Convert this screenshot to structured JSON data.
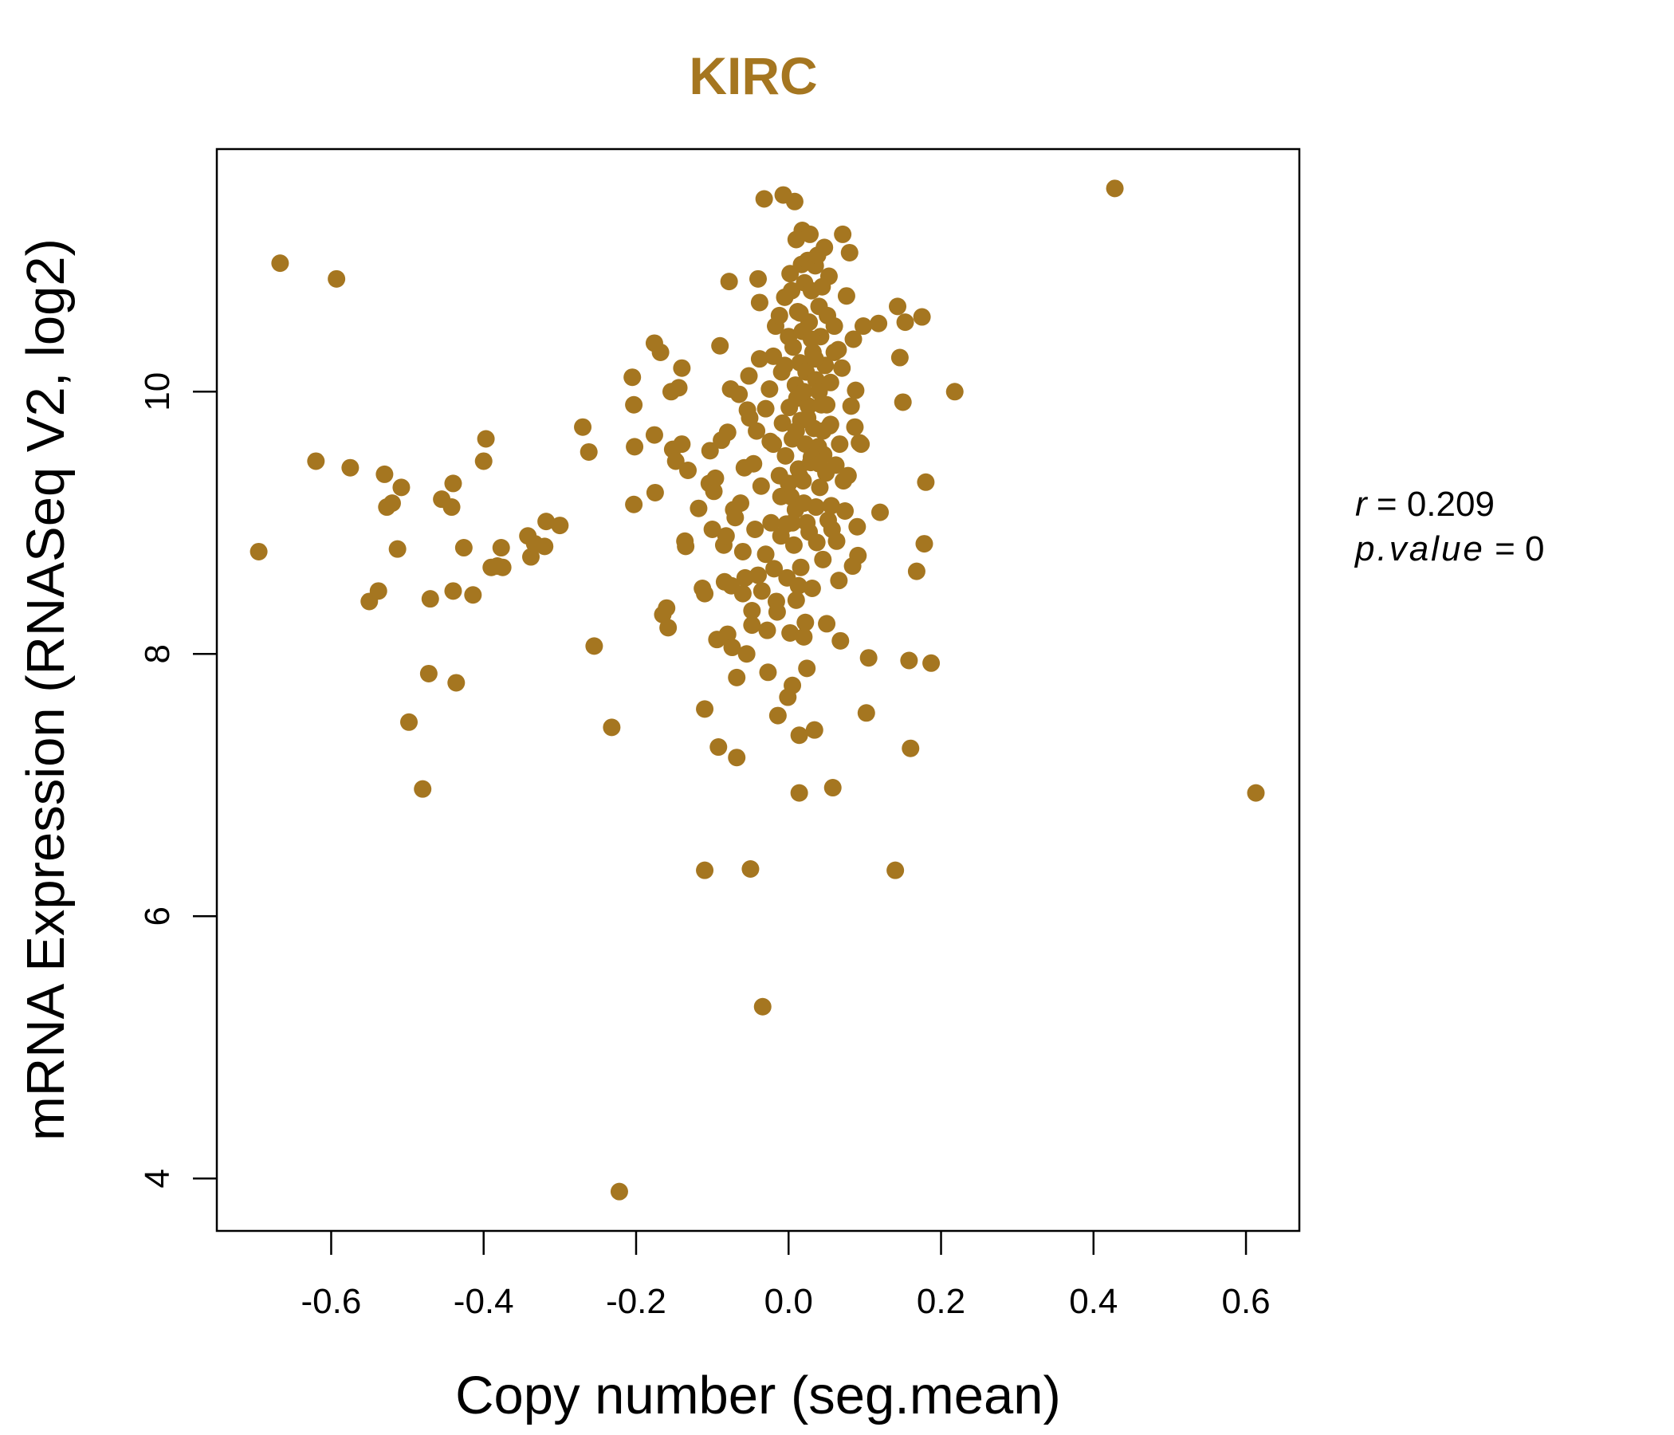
{
  "chart_data": {
    "type": "scatter",
    "title": "KIRC",
    "xlabel": "Copy number (seg.mean)",
    "ylabel": "mRNA Expression (RNASeq V2, log2)",
    "xlim": [
      -0.75,
      0.67
    ],
    "ylim": [
      3.6,
      11.85
    ],
    "xticks": [
      -0.6,
      -0.4,
      -0.2,
      0.0,
      0.2,
      0.4,
      0.6
    ],
    "xtick_labels": [
      "-0.6",
      "-0.4",
      "-0.2",
      "0.0",
      "0.2",
      "0.4",
      "0.6"
    ],
    "yticks": [
      4,
      6,
      8,
      10
    ],
    "ytick_labels": [
      "4",
      "6",
      "8",
      "10"
    ],
    "grid": false,
    "point_color": "#A57620",
    "title_color": "#A57620",
    "annotation": {
      "r_symbol": "r",
      "r_value": "0.209",
      "p_symbol": "p.value",
      "p_value": "0"
    },
    "points": [
      [
        -0.695,
        8.78
      ],
      [
        -0.667,
        10.98
      ],
      [
        -0.593,
        10.86
      ],
      [
        -0.62,
        9.47
      ],
      [
        -0.575,
        9.42
      ],
      [
        -0.55,
        8.4
      ],
      [
        -0.538,
        8.48
      ],
      [
        -0.53,
        9.37
      ],
      [
        -0.527,
        9.12
      ],
      [
        -0.52,
        9.15
      ],
      [
        -0.513,
        8.8
      ],
      [
        -0.508,
        9.27
      ],
      [
        -0.498,
        7.48
      ],
      [
        -0.48,
        6.97
      ],
      [
        -0.472,
        7.85
      ],
      [
        -0.47,
        8.42
      ],
      [
        -0.455,
        9.18
      ],
      [
        -0.442,
        9.12
      ],
      [
        -0.44,
        9.3
      ],
      [
        -0.44,
        8.48
      ],
      [
        -0.436,
        7.78
      ],
      [
        -0.426,
        8.81
      ],
      [
        -0.414,
        8.45
      ],
      [
        -0.4,
        9.47
      ],
      [
        -0.397,
        9.64
      ],
      [
        -0.39,
        8.66
      ],
      [
        -0.382,
        8.67
      ],
      [
        -0.377,
        8.81
      ],
      [
        -0.375,
        8.66
      ],
      [
        -0.342,
        8.9
      ],
      [
        -0.338,
        8.74
      ],
      [
        -0.333,
        8.84
      ],
      [
        -0.32,
        8.82
      ],
      [
        -0.318,
        9.01
      ],
      [
        -0.3,
        8.98
      ],
      [
        -0.27,
        9.73
      ],
      [
        -0.262,
        9.54
      ],
      [
        -0.255,
        8.06
      ],
      [
        -0.232,
        7.44
      ],
      [
        -0.222,
        3.9
      ],
      [
        -0.205,
        10.11
      ],
      [
        -0.203,
        9.9
      ],
      [
        -0.202,
        9.58
      ],
      [
        -0.203,
        9.14
      ],
      [
        -0.176,
        10.37
      ],
      [
        -0.176,
        9.67
      ],
      [
        -0.175,
        9.23
      ],
      [
        -0.168,
        10.3
      ],
      [
        -0.165,
        8.3
      ],
      [
        -0.16,
        8.35
      ],
      [
        -0.158,
        8.2
      ],
      [
        -0.154,
        10.0
      ],
      [
        -0.152,
        9.56
      ],
      [
        -0.148,
        9.47
      ],
      [
        -0.144,
        10.03
      ],
      [
        -0.14,
        10.18
      ],
      [
        -0.14,
        9.6
      ],
      [
        -0.136,
        8.86
      ],
      [
        -0.135,
        8.82
      ],
      [
        -0.132,
        9.4
      ],
      [
        -0.118,
        9.11
      ],
      [
        -0.113,
        8.5
      ],
      [
        -0.11,
        8.46
      ],
      [
        -0.11,
        7.58
      ],
      [
        -0.11,
        6.35
      ],
      [
        -0.104,
        9.3
      ],
      [
        -0.103,
        9.55
      ],
      [
        -0.1,
        8.95
      ],
      [
        -0.098,
        9.24
      ],
      [
        -0.096,
        9.34
      ],
      [
        -0.094,
        8.11
      ],
      [
        -0.092,
        7.29
      ],
      [
        -0.09,
        10.35
      ],
      [
        -0.088,
        9.63
      ],
      [
        -0.085,
        8.83
      ],
      [
        -0.084,
        8.55
      ],
      [
        -0.082,
        8.9
      ],
      [
        -0.08,
        9.69
      ],
      [
        -0.08,
        8.15
      ],
      [
        -0.078,
        10.84
      ],
      [
        -0.076,
        10.02
      ],
      [
        -0.075,
        8.52
      ],
      [
        -0.074,
        8.05
      ],
      [
        -0.072,
        9.1
      ],
      [
        -0.07,
        9.04
      ],
      [
        -0.068,
        7.82
      ],
      [
        -0.068,
        7.21
      ],
      [
        -0.065,
        9.98
      ],
      [
        -0.063,
        9.15
      ],
      [
        -0.06,
        8.78
      ],
      [
        -0.06,
        8.46
      ],
      [
        -0.058,
        9.42
      ],
      [
        -0.057,
        8.58
      ],
      [
        -0.055,
        8.0
      ],
      [
        -0.054,
        9.86
      ],
      [
        -0.052,
        10.12
      ],
      [
        -0.051,
        9.8
      ],
      [
        -0.05,
        6.36
      ],
      [
        -0.048,
        8.22
      ],
      [
        -0.048,
        8.33
      ],
      [
        -0.046,
        9.45
      ],
      [
        -0.044,
        8.95
      ],
      [
        -0.042,
        9.7
      ],
      [
        -0.04,
        10.86
      ],
      [
        -0.04,
        8.6
      ],
      [
        -0.038,
        10.68
      ],
      [
        -0.038,
        10.25
      ],
      [
        -0.036,
        9.28
      ],
      [
        -0.035,
        8.48
      ],
      [
        -0.034,
        5.31
      ],
      [
        -0.032,
        11.47
      ],
      [
        -0.03,
        9.87
      ],
      [
        -0.03,
        8.76
      ],
      [
        -0.028,
        8.18
      ],
      [
        -0.027,
        7.86
      ],
      [
        -0.025,
        10.02
      ],
      [
        -0.024,
        9.62
      ],
      [
        -0.023,
        9.0
      ],
      [
        -0.02,
        10.27
      ],
      [
        -0.019,
        8.65
      ],
      [
        -0.017,
        10.5
      ],
      [
        -0.016,
        8.4
      ],
      [
        -0.015,
        8.32
      ],
      [
        -0.014,
        7.53
      ],
      [
        -0.012,
        10.58
      ],
      [
        -0.012,
        9.36
      ],
      [
        -0.01,
        8.9
      ],
      [
        -0.009,
        10.15
      ],
      [
        -0.008,
        9.76
      ],
      [
        -0.007,
        11.5
      ],
      [
        -0.005,
        10.72
      ],
      [
        -0.004,
        9.51
      ],
      [
        -0.003,
        8.99
      ],
      [
        -0.002,
        8.58
      ],
      [
        -0.001,
        7.67
      ],
      [
        0.0,
        10.42
      ],
      [
        0.001,
        9.88
      ],
      [
        0.002,
        8.16
      ],
      [
        0.002,
        10.9
      ],
      [
        0.003,
        9.2
      ],
      [
        0.004,
        10.77
      ],
      [
        0.005,
        9.64
      ],
      [
        0.005,
        7.76
      ],
      [
        0.006,
        10.34
      ],
      [
        0.007,
        8.83
      ],
      [
        0.008,
        11.45
      ],
      [
        0.009,
        9.1
      ],
      [
        0.009,
        10.05
      ],
      [
        0.01,
        11.16
      ],
      [
        0.01,
        8.41
      ],
      [
        0.011,
        9.95
      ],
      [
        0.012,
        10.61
      ],
      [
        0.013,
        8.52
      ],
      [
        0.013,
        9.41
      ],
      [
        0.014,
        7.38
      ],
      [
        0.014,
        6.94
      ],
      [
        0.015,
        10.22
      ],
      [
        0.016,
        9.78
      ],
      [
        0.016,
        8.66
      ],
      [
        0.017,
        10.97
      ],
      [
        0.018,
        11.23
      ],
      [
        0.018,
        10.46
      ],
      [
        0.019,
        9.32
      ],
      [
        0.02,
        8.13
      ],
      [
        0.021,
        10.83
      ],
      [
        0.022,
        9.6
      ],
      [
        0.022,
        8.24
      ],
      [
        0.023,
        10.15
      ],
      [
        0.024,
        9.0
      ],
      [
        0.024,
        7.89
      ],
      [
        0.025,
        11.0
      ],
      [
        0.026,
        9.89
      ],
      [
        0.027,
        10.53
      ],
      [
        0.027,
        8.93
      ],
      [
        0.028,
        11.2
      ],
      [
        0.029,
        9.46
      ],
      [
        0.03,
        10.77
      ],
      [
        0.031,
        8.5
      ],
      [
        0.032,
        10.3
      ],
      [
        0.033,
        9.72
      ],
      [
        0.034,
        7.42
      ],
      [
        0.035,
        10.96
      ],
      [
        0.036,
        9.12
      ],
      [
        0.036,
        10.09
      ],
      [
        0.037,
        8.85
      ],
      [
        0.038,
        11.04
      ],
      [
        0.039,
        9.58
      ],
      [
        0.04,
        10.65
      ],
      [
        0.041,
        9.27
      ],
      [
        0.042,
        10.42
      ],
      [
        0.043,
        9.9
      ],
      [
        0.044,
        10.8
      ],
      [
        0.045,
        8.72
      ],
      [
        0.046,
        9.52
      ],
      [
        0.047,
        11.1
      ],
      [
        0.048,
        10.2
      ],
      [
        0.049,
        9.38
      ],
      [
        0.05,
        8.23
      ],
      [
        0.051,
        10.58
      ],
      [
        0.052,
        9.02
      ],
      [
        0.053,
        10.88
      ],
      [
        0.054,
        9.74
      ],
      [
        0.055,
        10.07
      ],
      [
        0.056,
        9.13
      ],
      [
        0.057,
        8.95
      ],
      [
        0.058,
        6.98
      ],
      [
        0.06,
        10.5
      ],
      [
        0.062,
        9.44
      ],
      [
        0.063,
        8.86
      ],
      [
        0.065,
        10.32
      ],
      [
        0.066,
        8.56
      ],
      [
        0.067,
        9.6
      ],
      [
        0.068,
        8.1
      ],
      [
        0.07,
        10.18
      ],
      [
        0.071,
        11.2
      ],
      [
        0.072,
        9.32
      ],
      [
        0.074,
        9.09
      ],
      [
        0.076,
        10.73
      ],
      [
        0.078,
        9.36
      ],
      [
        0.08,
        11.06
      ],
      [
        0.082,
        9.89
      ],
      [
        0.084,
        8.67
      ],
      [
        0.085,
        10.4
      ],
      [
        0.087,
        9.73
      ],
      [
        0.088,
        10.01
      ],
      [
        0.09,
        8.97
      ],
      [
        0.091,
        8.75
      ],
      [
        0.093,
        9.61
      ],
      [
        0.095,
        9.6
      ],
      [
        0.098,
        10.5
      ],
      [
        0.102,
        7.55
      ],
      [
        0.105,
        7.97
      ],
      [
        0.118,
        10.52
      ],
      [
        0.12,
        9.08
      ],
      [
        0.14,
        6.35
      ],
      [
        0.143,
        10.65
      ],
      [
        0.146,
        10.26
      ],
      [
        0.15,
        9.92
      ],
      [
        0.153,
        10.53
      ],
      [
        0.158,
        7.95
      ],
      [
        0.16,
        7.28
      ],
      [
        0.168,
        8.63
      ],
      [
        0.175,
        10.57
      ],
      [
        0.178,
        8.84
      ],
      [
        0.18,
        9.31
      ],
      [
        0.187,
        7.93
      ],
      [
        0.218,
        10.0
      ],
      [
        0.428,
        11.55
      ],
      [
        0.613,
        6.94
      ],
      [
        -0.01,
        9.2
      ],
      [
        0.005,
        9.0
      ],
      [
        0.015,
        9.35
      ],
      [
        0.025,
        9.8
      ],
      [
        0.035,
        10.25
      ],
      [
        0.045,
        9.7
      ],
      [
        0.02,
        10.0
      ],
      [
        0.03,
        9.5
      ],
      [
        0.01,
        9.7
      ],
      [
        0.04,
        10.0
      ],
      [
        -0.02,
        9.6
      ],
      [
        0.0,
        9.3
      ],
      [
        0.03,
        10.4
      ],
      [
        0.05,
        9.9
      ],
      [
        0.06,
        10.3
      ],
      [
        0.02,
        9.15
      ],
      [
        0.04,
        9.45
      ],
      [
        0.015,
        10.6
      ],
      [
        -0.005,
        10.2
      ],
      [
        0.055,
        9.75
      ]
    ]
  }
}
